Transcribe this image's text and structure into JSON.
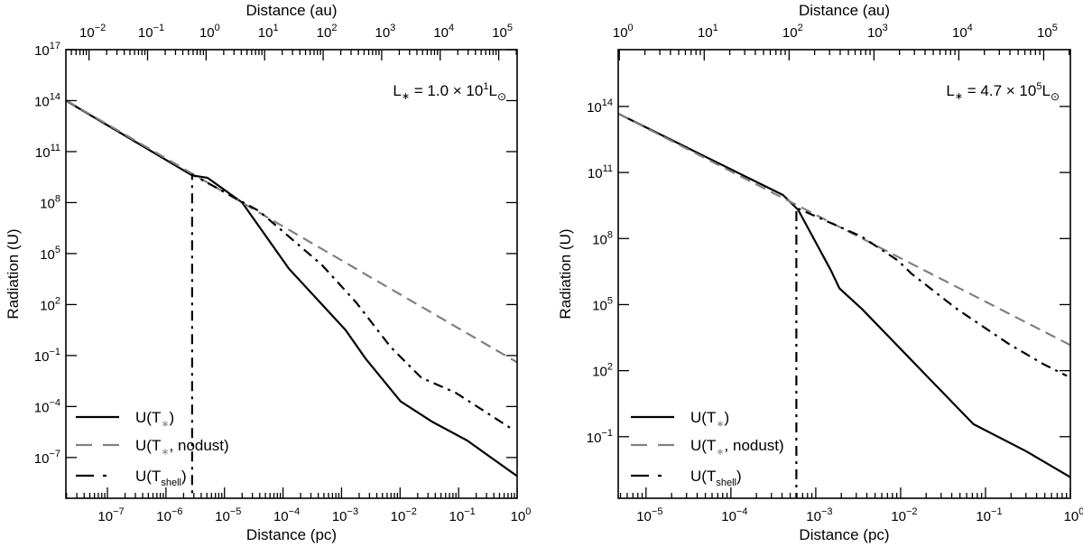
{
  "chart_data": [
    {
      "type": "line",
      "xlabel": "Distance (pc)",
      "x2label": "Distance (au)",
      "ylabel": "Radiation (U)",
      "xscale": "log",
      "yscale": "log",
      "xlim": [
        1.95e-08,
        1
      ],
      "ylim": [
        4e-10,
        1e+17
      ],
      "x_tick_exponents": [
        -7,
        -6,
        -5,
        -4,
        -3,
        -2,
        -1,
        0
      ],
      "x2_tick_exponents": [
        -2,
        -1,
        0,
        1,
        2,
        3,
        4,
        5
      ],
      "y_tick_exponents": [
        17,
        14,
        11,
        8,
        5,
        2,
        -1,
        -4,
        -7
      ],
      "annotation": {
        "main": "L",
        "sub": "∗",
        "mid": " = 1.0 × 10",
        "sup": "1",
        "unit": "L",
        "unit_sub": "⊙"
      },
      "legend_position": "bottom-left",
      "series": [
        {
          "name": "U(T∗)",
          "label_parts": [
            "U(T",
            "∗",
            ")"
          ],
          "color": "#000000",
          "style": "solid",
          "points": [
            [
              1.95e-08,
              100000000000000.0
            ],
            [
              2.8e-06,
              4000000000.0
            ],
            [
              5.1e-06,
              2900000000.0
            ],
            [
              2e-05,
              100000000.0
            ],
            [
              0.000126,
              13000.0
            ],
            [
              0.00117,
              3.2
            ],
            [
              0.0026,
              0.063
            ],
            [
              0.0102,
              0.0002
            ],
            [
              0.035,
              1.3e-05
            ],
            [
              0.14,
              1e-06
            ],
            [
              1,
              8e-09
            ]
          ]
        },
        {
          "name": "U(T∗, nodust)",
          "label_parts": [
            "U(T",
            "∗",
            ", nodust)"
          ],
          "color": "#808080",
          "style": "dashed",
          "points": [
            [
              1.95e-08,
              105000000000000.0
            ],
            [
              1,
              0.04
            ]
          ]
        },
        {
          "name": "U(Tshell)",
          "label_parts": [
            "U(T",
            "shell",
            ")"
          ],
          "color": "#000000",
          "style": "dashdot",
          "points": [
            [
              2.8e-06,
              1e-10
            ],
            [
              2.8e-06,
              4500000000.0
            ],
            [
              3.9e-05,
              32000000.0
            ],
            [
              0.00045,
              23000.0
            ],
            [
              0.0006,
              8000.0
            ],
            [
              0.0018,
              126
            ],
            [
              0.0069,
              0.32
            ],
            [
              0.023,
              0.005
            ],
            [
              0.09,
              0.00063
            ],
            [
              0.8,
              5e-06
            ]
          ]
        }
      ]
    },
    {
      "type": "line",
      "xlabel": "Distance (pc)",
      "x2label": "Distance (au)",
      "ylabel": "Radiation (U)",
      "xscale": "log",
      "yscale": "log",
      "xlim": [
        4.7e-06,
        1
      ],
      "ylim": [
        0.00016,
        3.8e+16
      ],
      "x_tick_exponents": [
        -5,
        -4,
        -3,
        -2,
        -1,
        0
      ],
      "x2_tick_exponents": [
        0,
        1,
        2,
        3,
        4,
        5
      ],
      "y_tick_exponents": [
        14,
        11,
        8,
        5,
        2,
        -1
      ],
      "annotation": {
        "main": "L",
        "sub": "∗",
        "mid": " = 4.7 × 10",
        "sup": "5",
        "unit": "L",
        "unit_sub": "⊙"
      },
      "legend_position": "bottom-left",
      "series": [
        {
          "name": "U(T∗)",
          "label_parts": [
            "U(T",
            "∗",
            ")"
          ],
          "color": "#000000",
          "style": "solid",
          "points": [
            [
              4.7e-06,
              47000000000000.0
            ],
            [
              0.00041,
              9500000000.0
            ],
            [
              0.00062,
              2000000000.0
            ],
            [
              0.0015,
              3700000.0
            ],
            [
              0.0019,
              550000.0
            ],
            [
              0.0035,
              63000.0
            ],
            [
              0.0135,
              290
            ],
            [
              0.072,
              0.37
            ],
            [
              0.3,
              0.022
            ],
            [
              1,
              0.00145
            ]
          ]
        },
        {
          "name": "U(T∗, nodust)",
          "label_parts": [
            "U(T",
            "∗",
            ", nodust)"
          ],
          "color": "#808080",
          "style": "dashed",
          "points": [
            [
              4.7e-06,
              47000000000000.0
            ],
            [
              1,
              1450.0
            ]
          ]
        },
        {
          "name": "U(Tshell)",
          "label_parts": [
            "U(T",
            "shell",
            ")"
          ],
          "color": "#000000",
          "style": "dashdot",
          "points": [
            [
              0.00059,
              0.0001
            ],
            [
              0.00059,
              2500000000.0
            ],
            [
              0.0035,
              120000000.0
            ],
            [
              0.0093,
              10000000.0
            ],
            [
              0.0135,
              2500000.0
            ],
            [
              0.046,
              63000.0
            ],
            [
              0.19,
              1600.0
            ],
            [
              0.48,
              200
            ],
            [
              0.91,
              58
            ]
          ]
        }
      ]
    }
  ]
}
